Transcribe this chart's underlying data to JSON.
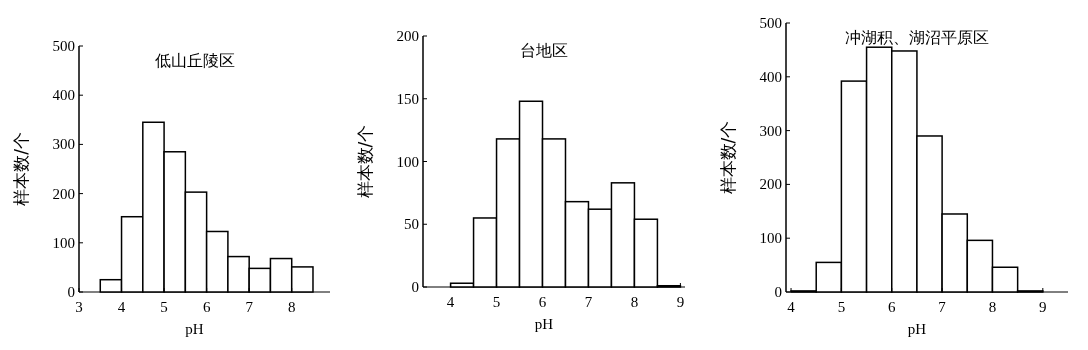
{
  "chart_data": [
    {
      "type": "histogram",
      "title": "低山丘陵区",
      "xlabel": "pH",
      "ylabel": "样本数/个",
      "color": "#ffffff",
      "bins": [
        3.5,
        4,
        4.5,
        5,
        5.5,
        6,
        6.5,
        7,
        7.5,
        8,
        8.5
      ],
      "values": [
        25,
        153,
        345,
        285,
        203,
        123,
        72,
        48,
        68,
        51
      ],
      "xlim": [
        3,
        8.9
      ],
      "xticks": [
        3,
        4,
        5,
        6,
        7,
        8
      ],
      "ylim": [
        0,
        500
      ],
      "yticks": [
        0,
        100,
        200,
        300,
        400,
        500
      ]
    },
    {
      "type": "histogram",
      "title": "台地区",
      "xlabel": "pH",
      "ylabel": "样本数/个",
      "color": "#ffffff",
      "bins": [
        4,
        4.5,
        5,
        5.5,
        6,
        6.5,
        7,
        7.5,
        8,
        8.5,
        9
      ],
      "values": [
        3,
        55,
        118,
        148,
        118,
        68,
        62,
        83,
        54,
        1
      ],
      "xlim": [
        3.4,
        9.1
      ],
      "xticks": [
        4,
        5,
        6,
        7,
        8,
        9
      ],
      "ylim": [
        0,
        200
      ],
      "yticks": [
        0,
        50,
        100,
        150,
        200
      ]
    },
    {
      "type": "histogram",
      "title": "冲湖积、湖沼平原区",
      "xlabel": "pH",
      "ylabel": "样本数/个",
      "color": "#ffffff",
      "bins": [
        4,
        4.5,
        5,
        5.5,
        6,
        6.5,
        7,
        7.5,
        8,
        8.5,
        9
      ],
      "values": [
        2,
        55,
        392,
        455,
        448,
        290,
        145,
        96,
        46,
        2
      ],
      "xlim": [
        3.9,
        9.5
      ],
      "xticks": [
        4,
        5,
        6,
        7,
        8,
        9
      ],
      "ylim": [
        0,
        500
      ],
      "yticks": [
        0,
        100,
        200,
        300,
        400,
        500
      ]
    }
  ]
}
